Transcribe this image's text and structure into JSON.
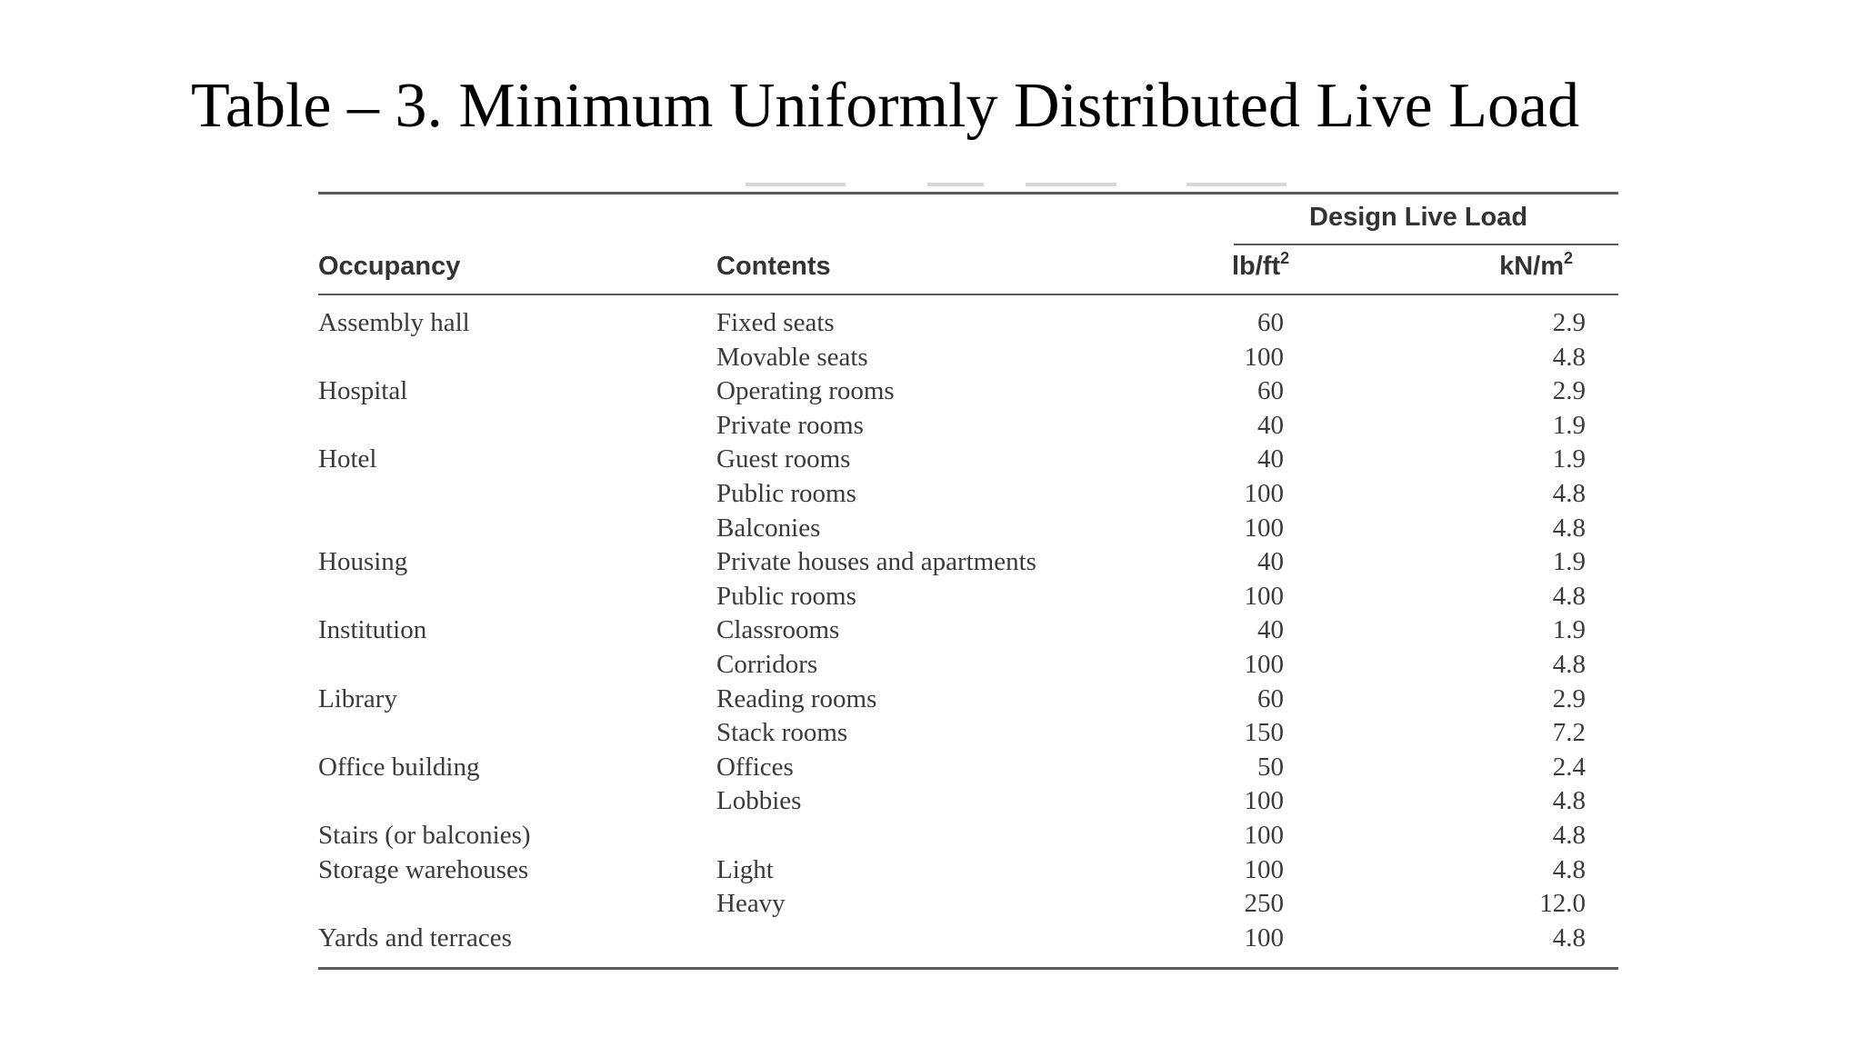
{
  "title": "Table – 3. Minimum Uniformly Distributed Live Load",
  "table": {
    "group_header": "Design Live Load",
    "headers": {
      "occupancy": "Occupancy",
      "contents": "Contents",
      "lb_ft2_base": "lb/ft",
      "kn_m2_base": "kN/m",
      "superscript": "2"
    },
    "rows": [
      {
        "occupancy": "Assembly hall",
        "contents": "Fixed seats",
        "lb_ft2": "60",
        "kn_m2": "2.9"
      },
      {
        "occupancy": "",
        "contents": "Movable seats",
        "lb_ft2": "100",
        "kn_m2": "4.8"
      },
      {
        "occupancy": "Hospital",
        "contents": "Operating rooms",
        "lb_ft2": "60",
        "kn_m2": "2.9"
      },
      {
        "occupancy": "",
        "contents": "Private rooms",
        "lb_ft2": "40",
        "kn_m2": "1.9"
      },
      {
        "occupancy": "Hotel",
        "contents": "Guest rooms",
        "lb_ft2": "40",
        "kn_m2": "1.9"
      },
      {
        "occupancy": "",
        "contents": "Public rooms",
        "lb_ft2": "100",
        "kn_m2": "4.8"
      },
      {
        "occupancy": "",
        "contents": "Balconies",
        "lb_ft2": "100",
        "kn_m2": "4.8"
      },
      {
        "occupancy": "Housing",
        "contents": "Private houses and apartments",
        "lb_ft2": "40",
        "kn_m2": "1.9"
      },
      {
        "occupancy": "",
        "contents": "Public rooms",
        "lb_ft2": "100",
        "kn_m2": "4.8"
      },
      {
        "occupancy": "Institution",
        "contents": "Classrooms",
        "lb_ft2": "40",
        "kn_m2": "1.9"
      },
      {
        "occupancy": "",
        "contents": "Corridors",
        "lb_ft2": "100",
        "kn_m2": "4.8"
      },
      {
        "occupancy": "Library",
        "contents": "Reading rooms",
        "lb_ft2": "60",
        "kn_m2": "2.9"
      },
      {
        "occupancy": "",
        "contents": "Stack rooms",
        "lb_ft2": "150",
        "kn_m2": "7.2"
      },
      {
        "occupancy": "Office building",
        "contents": "Offices",
        "lb_ft2": "50",
        "kn_m2": "2.4"
      },
      {
        "occupancy": "",
        "contents": "Lobbies",
        "lb_ft2": "100",
        "kn_m2": "4.8"
      },
      {
        "occupancy": "Stairs (or balconies)",
        "contents": "",
        "lb_ft2": "100",
        "kn_m2": "4.8"
      },
      {
        "occupancy": "Storage warehouses",
        "contents": "Light",
        "lb_ft2": "100",
        "kn_m2": "4.8"
      },
      {
        "occupancy": "",
        "contents": "Heavy",
        "lb_ft2": "250",
        "kn_m2": "12.0"
      },
      {
        "occupancy": "Yards and terraces",
        "contents": "",
        "lb_ft2": "100",
        "kn_m2": "4.8"
      }
    ]
  }
}
